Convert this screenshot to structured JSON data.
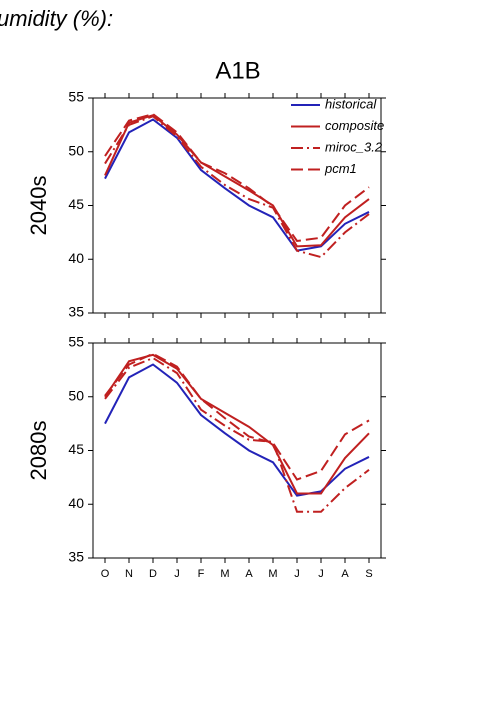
{
  "title": "umidity (%):",
  "subtitle": "A1B",
  "chart_data": [
    {
      "type": "line",
      "ylabel": "2040s",
      "ylim": [
        35,
        55
      ],
      "yticks": [
        35,
        40,
        45,
        50,
        55
      ],
      "legend": "upper right",
      "series": [
        {
          "name": "historical",
          "color": "#2323b8",
          "linestyle": "solid",
          "values": [
            47.5,
            51.8,
            53.0,
            51.3,
            48.3,
            46.6,
            45.0,
            43.9,
            40.8,
            41.2,
            43.3,
            44.4
          ]
        },
        {
          "name": "composite",
          "color": "#c02020",
          "linestyle": "solid",
          "values": [
            47.8,
            52.7,
            53.4,
            51.6,
            49.0,
            47.7,
            46.4,
            45.0,
            41.2,
            41.3,
            43.9,
            45.6
          ]
        },
        {
          "name": "miroc_3.2",
          "color": "#c02020",
          "linestyle": "dashdot",
          "values": [
            48.9,
            52.5,
            53.3,
            51.4,
            48.6,
            46.9,
            45.6,
            44.8,
            40.8,
            40.2,
            42.5,
            44.2
          ]
        },
        {
          "name": "pcm1",
          "color": "#c02020",
          "linestyle": "dashed",
          "values": [
            49.6,
            52.9,
            53.5,
            51.8,
            49.0,
            48.0,
            46.6,
            44.9,
            41.7,
            42.0,
            45.0,
            46.7
          ]
        }
      ]
    },
    {
      "type": "line",
      "ylabel": "2080s",
      "ylim": [
        35,
        55
      ],
      "yticks": [
        35,
        40,
        45,
        50,
        55
      ],
      "categories": [
        "O",
        "N",
        "D",
        "J",
        "F",
        "M",
        "A",
        "M",
        "J",
        "J",
        "A",
        "S"
      ],
      "series": [
        {
          "color": "#2323b8",
          "linestyle": "solid",
          "values": [
            47.5,
            51.8,
            53.0,
            51.3,
            48.3,
            46.6,
            45.0,
            43.9,
            40.8,
            41.2,
            43.3,
            44.4
          ]
        },
        {
          "color": "#c02020",
          "linestyle": "solid",
          "values": [
            50.0,
            53.3,
            53.9,
            52.6,
            49.8,
            48.5,
            47.2,
            45.5,
            41.0,
            41.0,
            44.3,
            46.6
          ]
        },
        {
          "color": "#c02020",
          "linestyle": "dashdot",
          "values": [
            49.8,
            52.7,
            53.6,
            52.2,
            48.8,
            47.3,
            46.0,
            45.8,
            39.3,
            39.3,
            41.5,
            43.2
          ]
        },
        {
          "color": "#c02020",
          "linestyle": "dashed",
          "values": [
            50.1,
            53.0,
            54.0,
            52.8,
            49.8,
            48.0,
            46.3,
            45.7,
            42.3,
            43.1,
            46.5,
            47.8
          ]
        }
      ]
    }
  ]
}
